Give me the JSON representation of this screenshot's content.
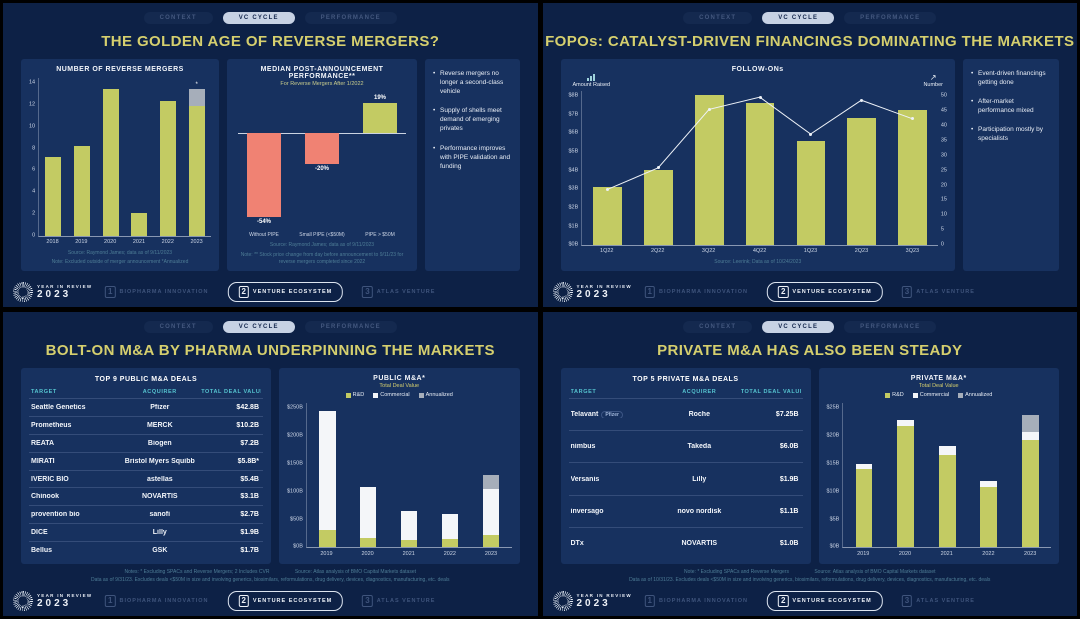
{
  "shared": {
    "tabs": [
      "CONTEXT",
      "VC CYCLE",
      "PERFORMANCE"
    ],
    "active_tab": "VC CYCLE",
    "logo": {
      "line1": "YEAR IN REVIEW",
      "line2": "2023"
    },
    "pages": [
      {
        "num": "1",
        "label": "BIOPHARMA INNOVATION",
        "active": false
      },
      {
        "num": "2",
        "label": "VENTURE ECOSYSTEM",
        "active": true
      },
      {
        "num": "3",
        "label": "ATLAS VENTURE",
        "active": false
      }
    ],
    "icons": {
      "trend_arrow": "↗"
    },
    "colors": {
      "slide_background": "#0d2146",
      "panel_background": "#17315f",
      "title_gold": "#d5cf6e",
      "bar_olive": "#c3cb63",
      "negative_salmon": "#f08273",
      "table_header_teal": "#55c3cf",
      "annualized_gray": "#a6aeba"
    }
  },
  "slides": {
    "reverse_mergers": {
      "title": "THE GOLDEN AGE OF REVERSE MERGERS?",
      "bullets": [
        "Reverse mergers no longer a second-class vehicle",
        "Supply of shells meet demand of emerging privates",
        "Performance improves with PIPE validation and funding"
      ],
      "chart1_source": "Source: Raymond James; data as of 9/11/2023",
      "chart1_note": "Note: Excluded outside of merger announcement    *Annualized",
      "chart2_source": "Source: Raymond James; data as of 9/11/2023",
      "chart2_note": "Note: ** Stock price change from day before announcement to 9/11/23 for reverse mergers completed since 2022"
    },
    "fopos": {
      "title": "FOPOs: CATALYST-DRIVEN FINANCINGS DOMINATING THE MARKETS",
      "bullets": [
        "Event-driven financings getting done",
        "After-market performance mixed",
        "Participation mostly by specialists"
      ],
      "source": "Source: Leerink; Data as of 10/24/2023"
    },
    "public_ma": {
      "title": "BOLT-ON M&A BY PHARMA UNDERPINNING THE MARKETS",
      "table": {
        "title": "TOP 9 PUBLIC M&A DEALS",
        "columns": [
          "TARGET",
          "ACQUIRER",
          "TOTAL DEAL VALUE"
        ],
        "rows": [
          {
            "target": "Seattle Genetics",
            "acquirer": "Pfizer",
            "value": "$42.8B"
          },
          {
            "target": "Prometheus",
            "acquirer": "MERCK",
            "value": "$10.2B"
          },
          {
            "target": "REATA",
            "acquirer": "Biogen",
            "value": "$7.2B"
          },
          {
            "target": "MIRATI",
            "acquirer": "Bristol Myers Squibb",
            "value": "$5.8B*"
          },
          {
            "target": "IVERIC BIO",
            "acquirer": "astellas",
            "value": "$5.4B"
          },
          {
            "target": "Chinook",
            "acquirer": "NOVARTIS",
            "value": "$3.1B"
          },
          {
            "target": "provention bio",
            "acquirer": "sanofi",
            "value": "$2.7B"
          },
          {
            "target": "DICE",
            "acquirer": "Lilly",
            "value": "$1.9B"
          },
          {
            "target": "Bellus",
            "acquirer": "GSK",
            "value": "$1.7B"
          }
        ]
      },
      "notes": "Notes: * Excluding SPACs and Reverse Mergers; 2 Includes CVR",
      "source": "Source: Atlas analysis of BMO Capital Markets dataset",
      "note2": "Data as of 9/31/23. Excludes deals <$50M in size and involving generics, biosimilars, reformulations, drug delivery, devices, diagnostics, manufacturing, etc. deals"
    },
    "private_ma": {
      "title": "PRIVATE M&A HAS ALSO BEEN STEADY",
      "table": {
        "title": "TOP 5 PRIVATE M&A DEALS",
        "columns": [
          "TARGET",
          "ACQUIRER",
          "TOTAL DEAL VALUE"
        ],
        "rows": [
          {
            "target": "Telavant",
            "target_co": "Pfizer",
            "acquirer": "Roche",
            "value": "$7.25B"
          },
          {
            "target": "nimbus",
            "acquirer": "Takeda",
            "value": "$6.0B"
          },
          {
            "target": "Versanis",
            "acquirer": "Lilly",
            "value": "$1.9B"
          },
          {
            "target": "inversago",
            "acquirer": "novo nordisk",
            "value": "$1.1B"
          },
          {
            "target": "DTx",
            "acquirer": "NOVARTIS",
            "value": "$1.0B"
          }
        ]
      },
      "notes": "Note: * Excluding SPACs and Reverse Mergers",
      "source": "Source: Atlas analysis of BMO Capital Markets dataset",
      "note2": "Data as of 10/31/23. Excludes deals <$50M in size and involving generics, biosimilars, reformulations, drug delivery, devices, diagnostics, manufacturing, etc. deals"
    }
  },
  "chart_data": [
    {
      "type": "bar",
      "title": "NUMBER OF REVERSE MERGERS",
      "categories": [
        "2018",
        "2019",
        "2020",
        "2021",
        "2022",
        "2023"
      ],
      "values": [
        7,
        8,
        13,
        2,
        12,
        11.5
      ],
      "annualized_top": [
        0,
        0,
        0,
        0,
        0,
        1.5
      ],
      "ymax": 14,
      "yticks": [
        0,
        2,
        4,
        6,
        8,
        10,
        12,
        14
      ],
      "annotation": "*",
      "annotation_index": 5,
      "bar_color": "#c3cb63",
      "top_color": "#a6aeba"
    },
    {
      "type": "diverging_bar",
      "title": "MEDIAN POST-ANNOUNCEMENT PERFORMANCE**",
      "subtitle": "For Reverse Mergers After 1/2022",
      "categories": [
        "Without PIPE",
        "Small PIPE (<$50M)",
        "PIPE > $50M"
      ],
      "values": [
        -54,
        -20,
        19
      ],
      "labels": [
        "-54%",
        "-20%",
        "19%"
      ],
      "ymin": -62,
      "ymax": 26,
      "positive_color": "#c3cb63",
      "negative_color": "#f08273"
    },
    {
      "type": "combo",
      "title": "FOLLOW-ONs",
      "left_axis_label": "Amount Raised",
      "right_axis_label": "Number",
      "categories": [
        "1Q22",
        "2Q22",
        "3Q22",
        "4Q22",
        "1Q23",
        "2Q23",
        "3Q23"
      ],
      "bars_name": "Amount Raised ($B)",
      "bar_values": [
        3.0,
        3.9,
        7.8,
        7.4,
        5.4,
        6.6,
        7.0
      ],
      "line_name": "Number",
      "line_values": [
        18,
        25,
        44,
        48,
        36,
        47,
        41
      ],
      "left_ticks": [
        "$0B",
        "$1B",
        "$2B",
        "$3B",
        "$4B",
        "$5B",
        "$6B",
        "$7B",
        "$8B"
      ],
      "left_max": 8,
      "right_ticks": [
        0,
        5,
        10,
        15,
        20,
        25,
        30,
        35,
        40,
        45,
        50
      ],
      "right_max": 50,
      "bar_color": "#c3cb63",
      "line_color": "#eef2f8"
    },
    {
      "type": "stacked_bar",
      "title": "PUBLIC M&A*",
      "subtitle": "Total Deal Value",
      "categories": [
        "2019",
        "2020",
        "2021",
        "2022",
        "2023"
      ],
      "series": [
        {
          "name": "R&D",
          "color": "#c3cb63",
          "values": [
            30,
            15,
            12,
            14,
            20
          ]
        },
        {
          "name": "Commercial",
          "color": "#f4f6f9",
          "values": [
            207,
            90,
            50,
            44,
            80
          ]
        },
        {
          "name": "Annualized",
          "color": "#a6aeba",
          "values": [
            0,
            0,
            0,
            0,
            25
          ]
        }
      ],
      "yticks": [
        "$0B",
        "$50B",
        "$100B",
        "$150B",
        "$200B",
        "$250B"
      ],
      "ymax": 250
    },
    {
      "type": "stacked_bar",
      "title": "PRIVATE M&A*",
      "subtitle": "Total Deal Value",
      "categories": [
        "2019",
        "2020",
        "2021",
        "2022",
        "2023"
      ],
      "series": [
        {
          "name": "R&D",
          "color": "#c3cb63",
          "values": [
            13.5,
            21,
            16,
            10.5,
            18.5
          ]
        },
        {
          "name": "Commercial",
          "color": "#f4f6f9",
          "values": [
            1,
            1,
            1.5,
            1,
            1.5
          ]
        },
        {
          "name": "Annualized",
          "color": "#a6aeba",
          "values": [
            0,
            0,
            0,
            0,
            3
          ]
        }
      ],
      "yticks": [
        "$0B",
        "$5B",
        "$10B",
        "$15B",
        "$20B",
        "$25B"
      ],
      "ymax": 25
    }
  ]
}
